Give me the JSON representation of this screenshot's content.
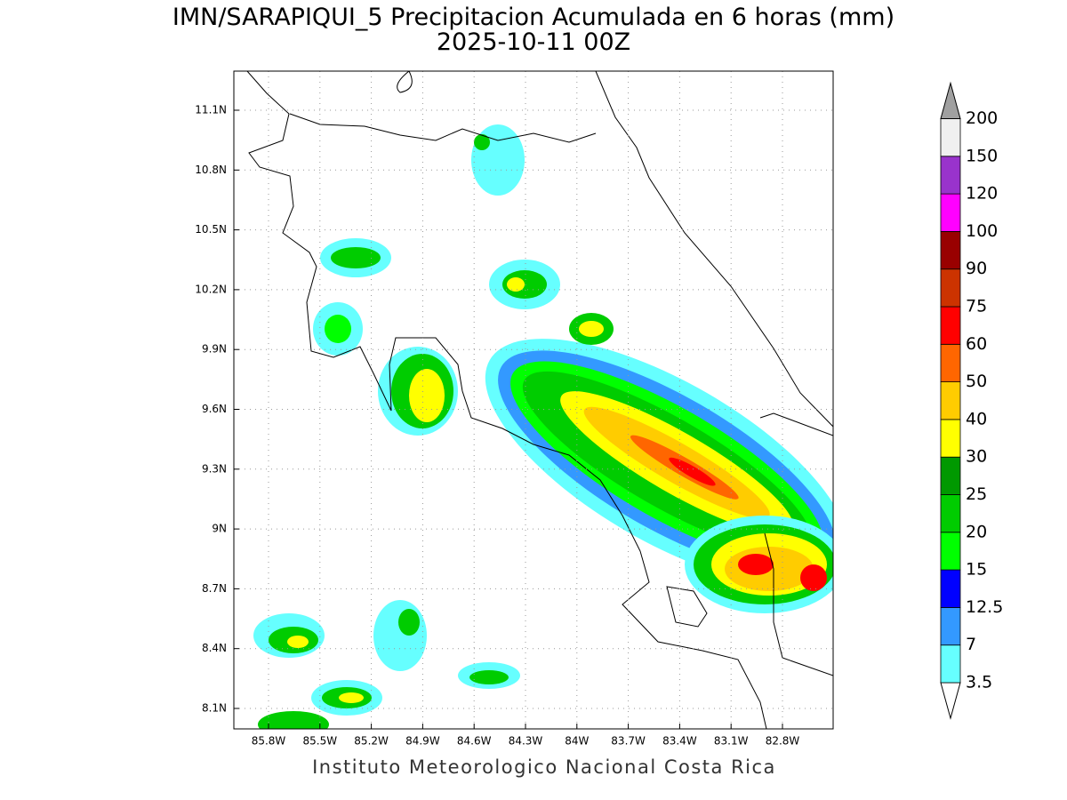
{
  "header": {
    "title": "IMN/SARAPIQUI_5 Precipitacion Acumulada en 6 horas (mm)",
    "subtitle": "2025-10-11 00Z"
  },
  "map": {
    "lat_ticks": [
      "11.1N",
      "10.8N",
      "10.5N",
      "10.2N",
      "9.9N",
      "9.6N",
      "9.3N",
      "9N",
      "8.7N",
      "8.4N",
      "8.1N"
    ],
    "lon_ticks": [
      "85.8W",
      "85.5W",
      "85.2W",
      "84.9W",
      "84.6W",
      "84.3W",
      "84W",
      "83.7W",
      "83.4W",
      "83.1W",
      "82.8W"
    ],
    "grid": true
  },
  "colorbar": {
    "levels": [
      3.5,
      7,
      12.5,
      15,
      20,
      25,
      30,
      40,
      50,
      60,
      75,
      90,
      100,
      120,
      150,
      200
    ],
    "colors": [
      "#66ffff",
      "#3399ff",
      "#0000ff",
      "#00ff00",
      "#00cc00",
      "#009900",
      "#ffff00",
      "#ffcc00",
      "#ff6600",
      "#ff0000",
      "#cc3300",
      "#990000",
      "#ff00ff",
      "#9933cc",
      "#f0f0f0"
    ],
    "under_color": "#ffffff",
    "over_color": "#a0a0a0"
  },
  "footer": "Instituto Meteorologico Nacional Costa Rica"
}
